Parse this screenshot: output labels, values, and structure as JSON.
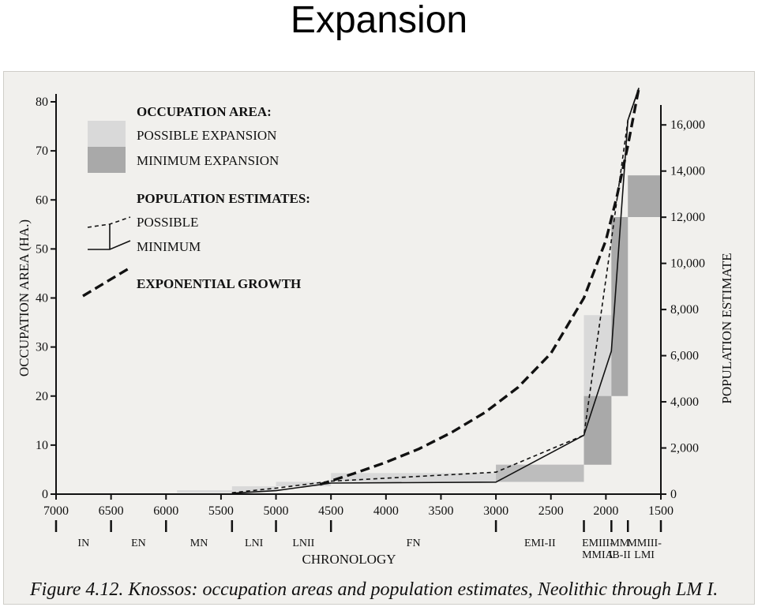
{
  "slide_title": "Expansion",
  "caption": "Figure 4.12. Knossos: occupation areas and population estimates, Neolithic through LM I.",
  "colors": {
    "possible_fill": "#d9d9d9",
    "minimum_fill": "#a9a9a9",
    "ink": "#111111"
  },
  "chart_data": {
    "type": "area",
    "xlabel": "CHRONOLOGY",
    "ylabel_left": "OCCUPATION AREA (HA.)",
    "ylabel_right": "POPULATION ESTIMATE",
    "x_range": [
      7000,
      1500
    ],
    "x_reversed": true,
    "x_ticks": [
      "7000",
      "6500",
      "6000",
      "5500",
      "5000",
      "4500",
      "4000",
      "3500",
      "3000",
      "2500",
      "2000",
      "1500"
    ],
    "ylim_left": [
      0,
      80
    ],
    "y_ticks_left": [
      "0",
      "10",
      "20",
      "30",
      "40",
      "50",
      "60",
      "70",
      "80"
    ],
    "ylim_right": [
      0,
      17000
    ],
    "y_ticks_right": [
      "0",
      "2,000",
      "4,000",
      "6,000",
      "8,000",
      "10,000",
      "12,000",
      "14,000",
      "16,000"
    ],
    "legend": {
      "placement": "top-left",
      "area_heading": "OCCUPATION AREA:",
      "possible_area": "POSSIBLE EXPANSION",
      "minimum_area": "MINIMUM EXPANSION",
      "population_heading": "POPULATION ESTIMATES:",
      "possible_pop": "POSSIBLE",
      "minimum_pop": "MINIMUM",
      "growth": "EXPONENTIAL GROWTH"
    },
    "periods": [
      {
        "label": "IN",
        "start": 7000,
        "end": 6500
      },
      {
        "label": "EN",
        "start": 6500,
        "end": 6000
      },
      {
        "label": "MN",
        "start": 6000,
        "end": 5400
      },
      {
        "label": "LNI",
        "start": 5400,
        "end": 5000
      },
      {
        "label": "LNII",
        "start": 5000,
        "end": 4500
      },
      {
        "label": "FN",
        "start": 4500,
        "end": 3000
      },
      {
        "label": "EMI-II",
        "start": 3000,
        "end": 2200
      },
      {
        "label": "EMIII-\nMMIA",
        "start": 2200,
        "end": 1950
      },
      {
        "label": "MM\nIB-II",
        "start": 1950,
        "end": 1800
      },
      {
        "label": "MMIII-\nLMI",
        "start": 1800,
        "end": 1500
      }
    ],
    "occupation_area": [
      {
        "period": "MN",
        "start": 5900,
        "end": 5400,
        "minimum": 0.3,
        "possible": 0.8
      },
      {
        "period": "LNI",
        "start": 5400,
        "end": 5000,
        "minimum": 0.6,
        "possible": 1.6
      },
      {
        "period": "LNII",
        "start": 5000,
        "end": 4500,
        "minimum": 1.6,
        "possible": 2.5
      },
      {
        "period": "FN",
        "start": 4500,
        "end": 3000,
        "minimum": 2.5,
        "possible": 4.3
      },
      {
        "period": "EMI-II",
        "start": 3000,
        "end": 2200,
        "minimum": 2.5,
        "possible": 6.0
      },
      {
        "period": "EMIII-MMIA",
        "start": 2200,
        "end": 1950,
        "minimum": 6.0,
        "possible": 36.5,
        "minimum_top": 20.0
      },
      {
        "period": "MM IB-II",
        "start": 1950,
        "end": 1800,
        "minimum": 20.0,
        "possible": 56.5
      },
      {
        "period": "MMIII-LMI",
        "start": 1800,
        "end": 1500,
        "minimum": 56.5,
        "possible": 65.0
      }
    ],
    "series": [
      {
        "name": "POSSIBLE",
        "style": "dashed",
        "x": [
          5400,
          5000,
          4500,
          3000,
          2200,
          1950,
          1800,
          1700
        ],
        "y": [
          60,
          260,
          560,
          950,
          2550,
          11000,
          16200,
          17600
        ]
      },
      {
        "name": "MINIMUM",
        "style": "solid",
        "x": [
          5400,
          5000,
          4500,
          3000,
          2200,
          1950,
          1800,
          1700
        ],
        "y": [
          40,
          150,
          480,
          520,
          2550,
          6200,
          16200,
          17600
        ]
      },
      {
        "name": "EXPONENTIAL GROWTH",
        "style": "long-dash",
        "x": [
          4600,
          4300,
          4000,
          3700,
          3400,
          3100,
          2800,
          2500,
          2200,
          2000,
          1900,
          1800,
          1700
        ],
        "y": [
          420,
          880,
          1380,
          1960,
          2680,
          3540,
          4620,
          6100,
          8500,
          11000,
          12900,
          15100,
          17600
        ]
      }
    ]
  }
}
